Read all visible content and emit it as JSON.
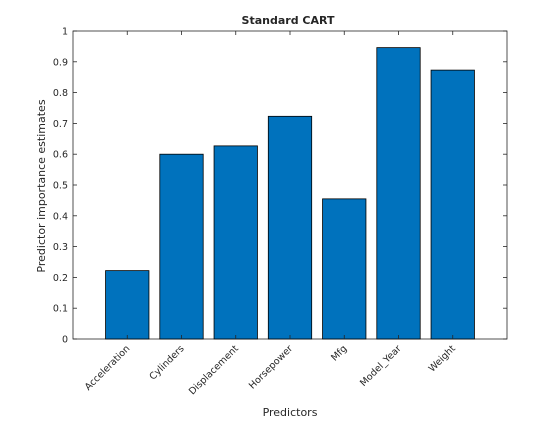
{
  "chart_data": {
    "type": "bar",
    "title": "Standard CART",
    "xlabel": "Predictors",
    "ylabel": "Predictor importance estimates",
    "categories": [
      "Acceleration",
      "Cylinders",
      "Displacement",
      "Horsepower",
      "Mfg",
      "Model_Year",
      "Weight"
    ],
    "values": [
      0.222,
      0.6,
      0.627,
      0.723,
      0.455,
      0.946,
      0.873
    ],
    "ylim": [
      0,
      1
    ],
    "yticks": [
      "0",
      "0.1",
      "0.2",
      "0.3",
      "0.4",
      "0.5",
      "0.6",
      "0.7",
      "0.8",
      "0.9",
      "1"
    ],
    "grid": false,
    "bar_color": "#0072bd",
    "bar_edge_color": "#000000"
  }
}
